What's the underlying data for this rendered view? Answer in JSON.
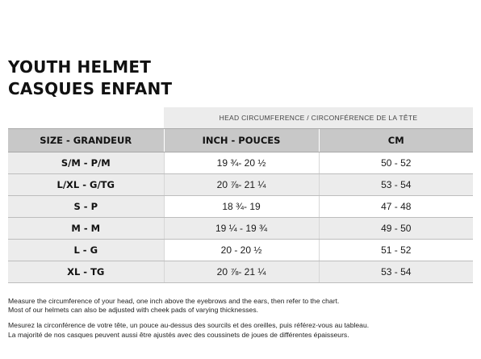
{
  "title": {
    "line1": "YOUTH HELMET",
    "line2": "CASQUES ENFANT"
  },
  "table": {
    "group_header": "HEAD CIRCUMFERENCE / CIRCONFÉRENCE DE LA TÊTE",
    "columns": [
      "SIZE - GRANDEUR",
      "INCH - POUCES",
      "CM"
    ],
    "rows": [
      {
        "size": "S/M - P/M",
        "inch": "19 ¾- 20 ½",
        "cm": "50 - 52"
      },
      {
        "size": "L/XL - G/TG",
        "inch": "20 ⅞- 21 ¼",
        "cm": "53 - 54"
      },
      {
        "size": "S - P",
        "inch": "18 ¾- 19",
        "cm": "47 - 48"
      },
      {
        "size": "M - M",
        "inch": "19 ¼ - 19 ¾",
        "cm": "49 - 50"
      },
      {
        "size": "L - G",
        "inch": "20 - 20 ½",
        "cm": "51 - 52"
      },
      {
        "size": "XL - TG",
        "inch": "20 ⅞- 21 ¼",
        "cm": "53 - 54"
      }
    ]
  },
  "notes": {
    "en_1": "Measure the circumference of your head, one inch above the eyebrows and the ears, then refer to the chart.",
    "en_2": "Most of our helmets can also be adjusted with cheek pads of varying thicknesses.",
    "fr_1": "Mesurez la circonférence de votre tête, un pouce au-dessus des sourcils et des oreilles, puis référez-vous au tableau.",
    "fr_2": "La majorité de nos casques peuvent aussi être ajustés avec des coussinets de joues de différentes épaisseurs."
  }
}
